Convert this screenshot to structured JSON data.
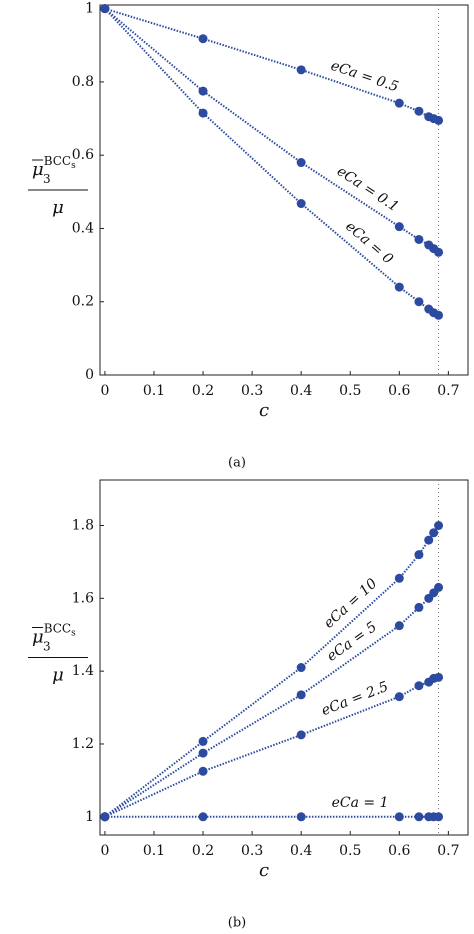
{
  "chart_data": [
    {
      "type": "line",
      "caption": "(a)",
      "xlabel": "c",
      "ylabel": {
        "numerator": "μ",
        "sub": "3",
        "sup": "BCC",
        "sup_sub": "s",
        "denominator": "μ"
      },
      "x": [
        0,
        0.2,
        0.4,
        0.6,
        0.64,
        0.66,
        0.67,
        0.68
      ],
      "series": [
        {
          "name": "eCa = 0.5",
          "color": "#2c4aa0",
          "values": [
            1,
            0.918,
            0.833,
            0.742,
            0.72,
            0.705,
            0.7,
            0.695
          ]
        },
        {
          "name": "eCa = 0.1",
          "color": "#2c4aa0",
          "values": [
            1,
            0.775,
            0.58,
            0.405,
            0.37,
            0.355,
            0.345,
            0.335
          ]
        },
        {
          "name": "eCa = 0",
          "color": "#2c4aa0",
          "values": [
            1,
            0.715,
            0.468,
            0.24,
            0.2,
            0.18,
            0.17,
            0.163
          ]
        }
      ],
      "xlim": [
        -0.01,
        0.74
      ],
      "xticks": [
        0,
        0.1,
        0.2,
        0.3,
        0.4,
        0.5,
        0.6,
        0.7
      ],
      "ylim": [
        0,
        1.01
      ],
      "yticks": [
        0,
        0.2,
        0.4,
        0.6,
        0.8,
        1
      ],
      "vline": 0.68
    },
    {
      "type": "line",
      "caption": "(b)",
      "xlabel": "c",
      "ylabel": {
        "numerator": "μ",
        "sub": "3",
        "sup": "BCC",
        "sup_sub": "s",
        "denominator": "μ"
      },
      "x": [
        0,
        0.2,
        0.4,
        0.6,
        0.64,
        0.66,
        0.67,
        0.68
      ],
      "series": [
        {
          "name": "eCa = 10",
          "color": "#2c4aa0",
          "values": [
            1,
            1.207,
            1.41,
            1.655,
            1.72,
            1.76,
            1.78,
            1.8
          ]
        },
        {
          "name": "eCa = 5",
          "color": "#2c4aa0",
          "values": [
            1,
            1.175,
            1.335,
            1.525,
            1.575,
            1.6,
            1.615,
            1.63
          ]
        },
        {
          "name": "eCa = 2.5",
          "color": "#2c4aa0",
          "values": [
            1,
            1.125,
            1.225,
            1.33,
            1.36,
            1.37,
            1.38,
            1.383
          ]
        },
        {
          "name": "eCa = 1",
          "color": "#2c4aa0",
          "values": [
            1,
            1,
            1,
            1,
            1,
            1,
            1,
            1
          ]
        }
      ],
      "xlim": [
        -0.01,
        0.74
      ],
      "xticks": [
        0,
        0.1,
        0.2,
        0.3,
        0.4,
        0.5,
        0.6,
        0.7
      ],
      "ylim": [
        0.95,
        1.925
      ],
      "yticks": [
        1,
        1.2,
        1.4,
        1.6,
        1.8
      ],
      "vline": 0.68
    }
  ]
}
